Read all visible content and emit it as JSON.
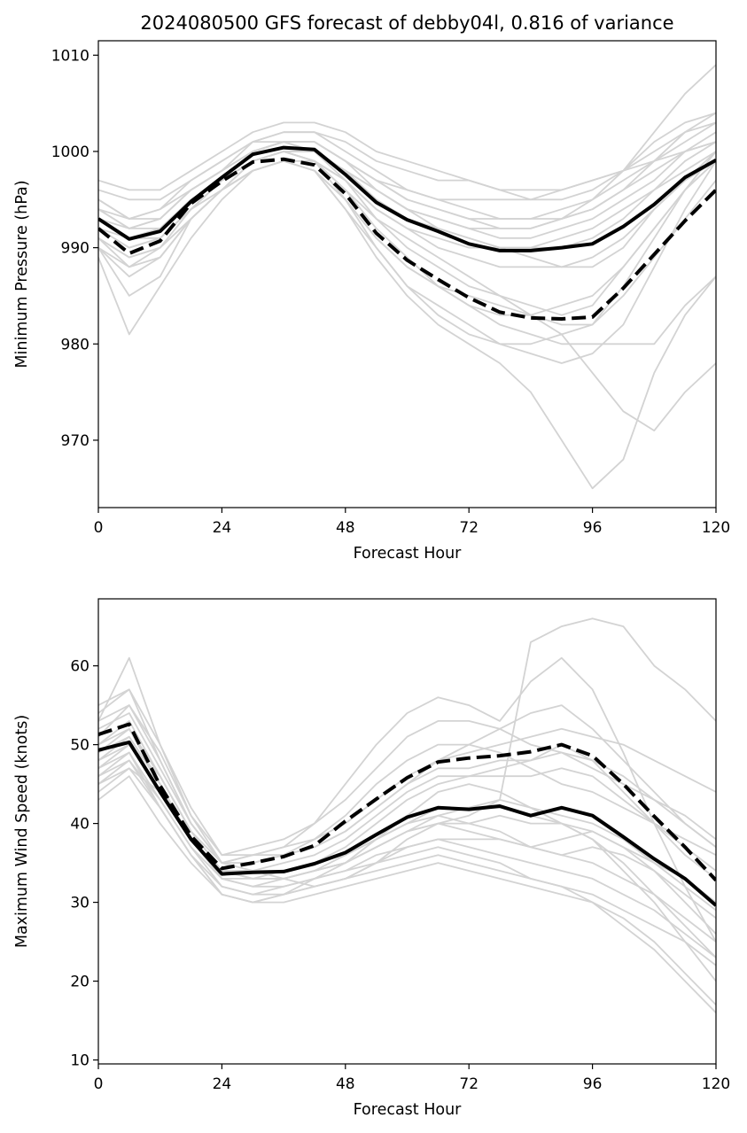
{
  "title": "2024080500 GFS forecast of debby04l, 0.816 of variance",
  "chart_data": [
    {
      "type": "line",
      "title": "2024080500 GFS forecast of debby04l, 0.816 of variance",
      "xlabel": "Forecast Hour",
      "ylabel": "Minimum Pressure (hPa)",
      "xlim": [
        0,
        120
      ],
      "ylim": [
        963,
        1011.5
      ],
      "xticks": [
        0,
        24,
        48,
        72,
        96,
        120
      ],
      "yticks": [
        970,
        980,
        990,
        1000,
        1010
      ],
      "grid": false,
      "x": [
        0,
        6,
        12,
        18,
        24,
        30,
        36,
        42,
        48,
        54,
        60,
        66,
        72,
        78,
        84,
        90,
        96,
        102,
        108,
        114,
        120
      ],
      "series": [
        {
          "style": "solid",
          "color": "#000000",
          "values": [
            993.0,
            990.9,
            991.7,
            994.8,
            997.3,
            999.7,
            1000.4,
            1000.2,
            997.6,
            994.7,
            992.9,
            991.7,
            990.4,
            989.7,
            989.7,
            990.0,
            990.4,
            992.2,
            994.5,
            997.3,
            999.1
          ]
        },
        {
          "style": "dashed",
          "color": "#000000",
          "values": [
            992.0,
            989.4,
            990.7,
            994.6,
            996.9,
            998.9,
            999.2,
            998.6,
            995.6,
            991.5,
            988.7,
            986.7,
            984.8,
            983.3,
            982.7,
            982.6,
            982.8,
            985.8,
            989.3,
            992.8,
            996.0
          ]
        }
      ],
      "ensemble": {
        "color": "#d3d3d3",
        "members": [
          [
            992,
            991,
            992,
            995,
            997,
            1000,
            1001,
            1001,
            999,
            997,
            995,
            994,
            993,
            992,
            992,
            993,
            995,
            998,
            1002,
            1006,
            1009
          ],
          [
            994,
            992,
            993,
            996,
            998,
            1000,
            1001,
            1000,
            998,
            996,
            994,
            993,
            992,
            991,
            991,
            992,
            993,
            995,
            997,
            1000,
            1002
          ],
          [
            990,
            985,
            987,
            993,
            996,
            999,
            1000,
            999,
            995,
            990,
            986,
            983,
            981,
            980,
            980,
            981,
            982,
            986,
            991,
            996,
            1000
          ],
          [
            993,
            991,
            991,
            994,
            997,
            999,
            1000,
            1000,
            997,
            993,
            991,
            989,
            987,
            985,
            984,
            983,
            984,
            988,
            992,
            996,
            999
          ],
          [
            991,
            989,
            990,
            993,
            996,
            998,
            999,
            998,
            994,
            990,
            986,
            984,
            982,
            980,
            979,
            978,
            979,
            982,
            988,
            994,
            999
          ],
          [
            995,
            993,
            993,
            996,
            998,
            1001,
            1002,
            1002,
            1000,
            998,
            996,
            995,
            994,
            993,
            993,
            993,
            994,
            996,
            999,
            1002,
            1004
          ],
          [
            989,
            981,
            986,
            991,
            995,
            998,
            999,
            998,
            994,
            989,
            985,
            982,
            980,
            978,
            975,
            970,
            965,
            968,
            977,
            983,
            987
          ],
          [
            994,
            992,
            992,
            995,
            997,
            1000,
            1001,
            1001,
            999,
            996,
            994,
            992,
            991,
            990,
            990,
            990,
            991,
            993,
            996,
            999,
            1001
          ],
          [
            992,
            990,
            991,
            994,
            997,
            999,
            1000,
            999,
            996,
            993,
            990,
            988,
            986,
            985,
            983,
            981,
            977,
            973,
            971,
            975,
            978
          ],
          [
            996,
            995,
            995,
            997,
            999,
            1001,
            1002,
            1002,
            1001,
            999,
            998,
            997,
            997,
            996,
            996,
            996,
            997,
            998,
            1000,
            1002,
            1003
          ],
          [
            990,
            988,
            989,
            993,
            996,
            998,
            999,
            998,
            995,
            991,
            988,
            986,
            984,
            983,
            983,
            984,
            985,
            988,
            992,
            996,
            999
          ],
          [
            993,
            992,
            993,
            996,
            998,
            1000,
            1001,
            1000,
            998,
            995,
            993,
            992,
            991,
            990,
            989,
            988,
            988,
            990,
            994,
            997,
            1000
          ],
          [
            991,
            988,
            990,
            994,
            997,
            999,
            1000,
            999,
            996,
            992,
            989,
            986,
            984,
            982,
            981,
            980,
            980,
            980,
            980,
            984,
            987
          ],
          [
            994,
            993,
            994,
            997,
            999,
            1001,
            1001,
            1001,
            999,
            997,
            996,
            995,
            995,
            995,
            995,
            996,
            997,
            998,
            999,
            1000,
            1001
          ],
          [
            992,
            990,
            991,
            994,
            996,
            999,
            1000,
            999,
            997,
            994,
            992,
            990,
            989,
            988,
            988,
            988,
            989,
            991,
            994,
            997,
            999
          ],
          [
            997,
            996,
            996,
            998,
            1000,
            1002,
            1003,
            1003,
            1002,
            1000,
            999,
            998,
            997,
            996,
            995,
            995,
            996,
            998,
            1001,
            1003,
            1004
          ],
          [
            990,
            987,
            989,
            993,
            996,
            998,
            999,
            998,
            995,
            991,
            988,
            986,
            985,
            984,
            983,
            982,
            982,
            985,
            989,
            993,
            997
          ],
          [
            993,
            991,
            992,
            995,
            997,
            999,
            1000,
            1000,
            998,
            996,
            994,
            993,
            992,
            992,
            992,
            993,
            994,
            996,
            998,
            1000,
            1001
          ],
          [
            995,
            993,
            994,
            996,
            998,
            1000,
            1001,
            1001,
            999,
            997,
            995,
            994,
            993,
            993,
            993,
            994,
            995,
            997,
            999,
            1001,
            1003
          ],
          [
            991,
            989,
            990,
            993,
            996,
            998,
            999,
            999,
            997,
            994,
            992,
            991,
            990,
            990,
            990,
            991,
            992,
            994,
            996,
            998,
            1000
          ]
        ]
      }
    },
    {
      "type": "line",
      "xlabel": "Forecast Hour",
      "ylabel": "Maximum Wind Speed (knots)",
      "xlim": [
        0,
        120
      ],
      "ylim": [
        9.5,
        68.5
      ],
      "xticks": [
        0,
        24,
        48,
        72,
        96,
        120
      ],
      "yticks": [
        10,
        20,
        30,
        40,
        50,
        60
      ],
      "grid": false,
      "x": [
        0,
        6,
        12,
        18,
        24,
        30,
        36,
        42,
        48,
        54,
        60,
        66,
        72,
        78,
        84,
        90,
        96,
        102,
        108,
        114,
        120
      ],
      "series": [
        {
          "style": "solid",
          "color": "#000000",
          "values": [
            49.3,
            50.3,
            44.0,
            38.0,
            33.6,
            33.8,
            33.9,
            34.9,
            36.3,
            38.6,
            40.8,
            42.0,
            41.8,
            42.2,
            41.0,
            42.0,
            41.0,
            38.3,
            35.5,
            33.0,
            29.6
          ]
        },
        {
          "style": "dashed",
          "color": "#000000",
          "values": [
            51.3,
            52.6,
            44.8,
            38.4,
            34.3,
            35.0,
            35.8,
            37.2,
            40.3,
            43.1,
            45.8,
            47.8,
            48.3,
            48.6,
            49.1,
            50.0,
            48.6,
            45.0,
            40.9,
            37.0,
            32.8
          ]
        }
      ],
      "ensemble": {
        "color": "#d3d3d3",
        "members": [
          [
            50,
            52,
            45,
            38,
            34,
            33,
            34,
            35,
            37,
            40,
            43,
            45,
            46,
            47,
            48,
            50,
            48,
            44,
            40,
            36,
            33
          ],
          [
            47,
            49,
            43,
            37,
            33,
            33,
            33,
            34,
            35,
            37,
            39,
            40,
            40,
            41,
            40,
            40,
            39,
            37,
            35,
            33,
            30
          ],
          [
            54,
            57,
            48,
            40,
            35,
            36,
            37,
            40,
            45,
            50,
            54,
            56,
            55,
            53,
            58,
            61,
            57,
            49,
            40,
            32,
            25
          ],
          [
            44,
            47,
            44,
            38,
            33,
            32,
            33,
            34,
            35,
            37,
            39,
            41,
            40,
            39,
            37,
            36,
            37,
            36,
            34,
            31,
            28
          ],
          [
            53,
            61,
            50,
            41,
            35,
            34,
            33,
            32,
            33,
            35,
            38,
            40,
            41,
            43,
            63,
            65,
            66,
            65,
            60,
            57,
            53
          ],
          [
            48,
            50,
            46,
            39,
            34,
            33,
            33,
            34,
            36,
            38,
            40,
            41,
            42,
            43,
            42,
            41,
            40,
            38,
            35,
            32,
            29
          ],
          [
            46,
            48,
            42,
            36,
            31,
            30,
            31,
            33,
            35,
            38,
            41,
            44,
            45,
            44,
            42,
            40,
            38,
            34,
            30,
            25,
            20
          ],
          [
            51,
            55,
            48,
            40,
            35,
            36,
            36,
            37,
            39,
            42,
            45,
            48,
            50,
            52,
            54,
            55,
            52,
            48,
            44,
            40,
            37
          ],
          [
            45,
            48,
            43,
            37,
            32,
            31,
            32,
            33,
            34,
            36,
            37,
            38,
            37,
            36,
            35,
            34,
            33,
            31,
            29,
            26,
            23
          ],
          [
            49,
            52,
            46,
            39,
            34,
            34,
            35,
            36,
            38,
            41,
            44,
            46,
            46,
            46,
            46,
            47,
            46,
            43,
            40,
            37,
            34
          ],
          [
            43,
            46,
            40,
            35,
            31,
            30,
            31,
            32,
            33,
            35,
            36,
            37,
            36,
            35,
            33,
            32,
            30,
            27,
            24,
            20,
            16
          ],
          [
            52,
            54,
            47,
            40,
            35,
            35,
            36,
            38,
            41,
            45,
            48,
            50,
            50,
            49,
            47,
            45,
            44,
            42,
            40,
            38,
            36
          ],
          [
            47,
            50,
            44,
            38,
            33,
            32,
            32,
            33,
            34,
            35,
            37,
            38,
            38,
            38,
            37,
            36,
            35,
            33,
            31,
            28,
            25
          ],
          [
            55,
            57,
            50,
            42,
            36,
            37,
            38,
            40,
            43,
            47,
            51,
            53,
            53,
            52,
            50,
            49,
            47,
            45,
            43,
            41,
            38
          ],
          [
            48,
            51,
            45,
            38,
            34,
            33,
            33,
            34,
            35,
            37,
            39,
            40,
            39,
            38,
            37,
            38,
            39,
            37,
            34,
            30,
            26
          ],
          [
            46,
            49,
            42,
            36,
            32,
            31,
            31,
            32,
            33,
            34,
            35,
            36,
            35,
            34,
            33,
            32,
            31,
            29,
            27,
            25,
            22
          ],
          [
            50,
            53,
            46,
            39,
            35,
            35,
            36,
            37,
            39,
            42,
            45,
            47,
            47,
            48,
            48,
            49,
            48,
            46,
            43,
            40,
            37
          ],
          [
            49,
            51,
            45,
            38,
            34,
            34,
            34,
            35,
            36,
            38,
            40,
            42,
            42,
            42,
            41,
            40,
            38,
            35,
            31,
            27,
            23
          ],
          [
            53,
            55,
            49,
            41,
            36,
            36,
            37,
            38,
            40,
            43,
            46,
            48,
            49,
            50,
            51,
            52,
            51,
            50,
            48,
            46,
            44
          ],
          [
            45,
            47,
            42,
            36,
            31,
            30,
            30,
            31,
            32,
            33,
            34,
            35,
            34,
            33,
            32,
            31,
            30,
            28,
            25,
            21,
            17
          ]
        ]
      }
    }
  ]
}
